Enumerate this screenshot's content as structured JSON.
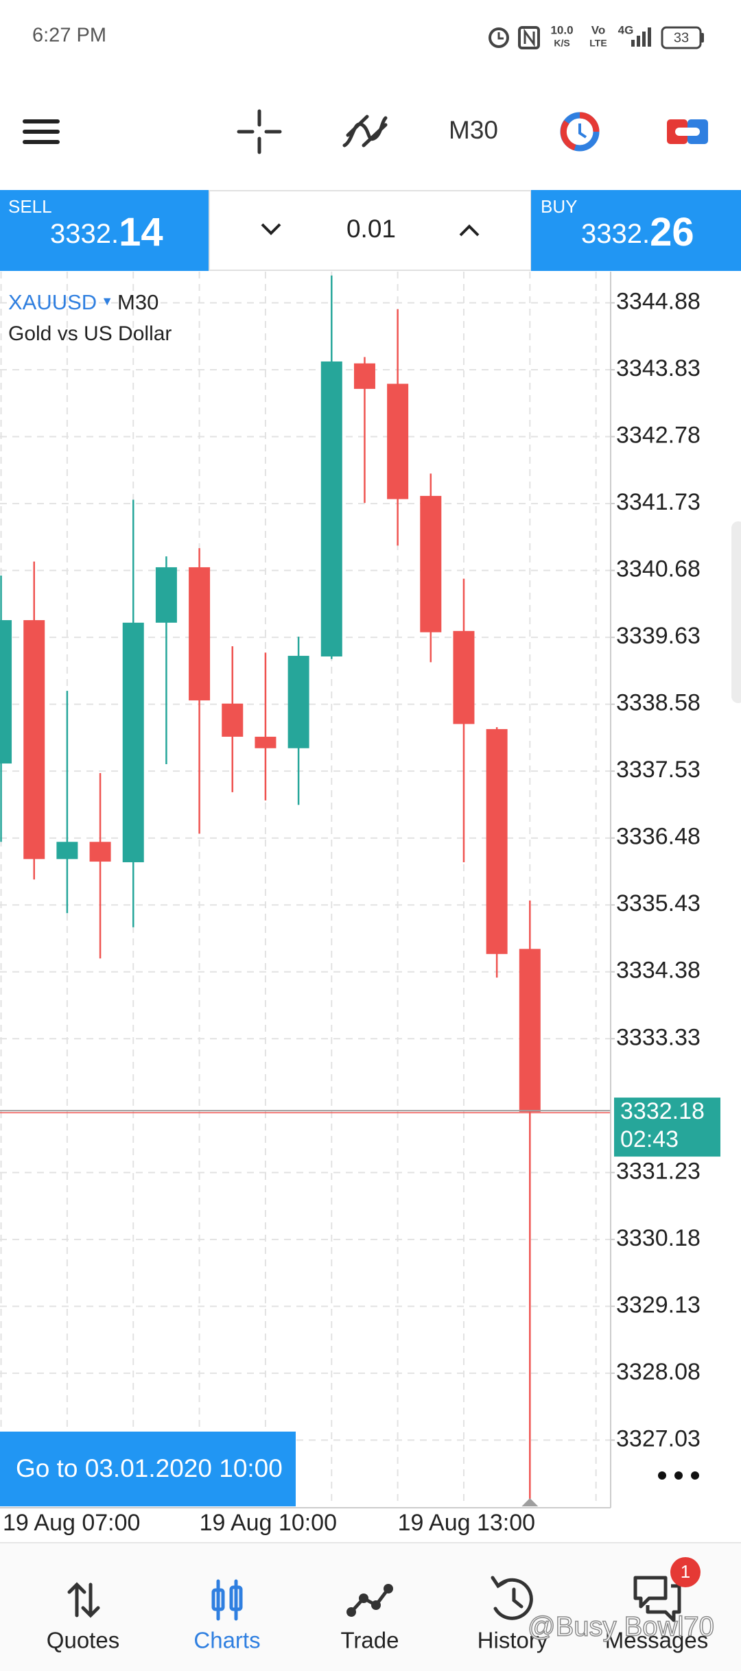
{
  "status_bar": {
    "time": "6:27 PM",
    "network_speed": "10.0",
    "speed_unit": "K/S",
    "volte_top": "Vo",
    "volte_bottom": "LTE",
    "network": "4G",
    "battery": "33"
  },
  "toolbar": {
    "timeframe": "M30"
  },
  "trade_bar": {
    "sell": {
      "label": "SELL",
      "price_main": "3332.",
      "price_big": "14"
    },
    "volume": "0.01",
    "buy": {
      "label": "BUY",
      "price_main": "3332.",
      "price_big": "26"
    }
  },
  "chart_data": {
    "type": "candlestick",
    "symbol": "XAUUSD",
    "timeframe": "M30",
    "subtitle": "Gold vs US Dollar",
    "categories": [
      "19 Aug 07:00",
      null,
      null,
      null,
      null,
      null,
      "19 Aug 10:00",
      null,
      null,
      null,
      null,
      null,
      "19 Aug 13:00",
      null,
      null,
      null,
      null
    ],
    "open": [
      3337.65,
      3339.9,
      3336.15,
      3336.42,
      3336.1,
      3339.86,
      3340.73,
      3338.59,
      3338.07,
      3337.89,
      3339.33,
      3343.93,
      3343.61,
      3341.85,
      3339.73,
      3338.19,
      3334.74
    ],
    "high": [
      3340.6,
      3340.82,
      3338.79,
      3337.5,
      3341.79,
      3340.9,
      3341.03,
      3339.49,
      3339.39,
      3339.64,
      3345.31,
      3344.03,
      3344.78,
      3342.2,
      3340.55,
      3338.22,
      3335.5
    ],
    "low": [
      3336.42,
      3335.83,
      3335.3,
      3334.59,
      3335.08,
      3337.64,
      3336.55,
      3337.2,
      3337.07,
      3337.0,
      3339.29,
      3341.74,
      3341.07,
      3339.24,
      3336.1,
      3334.29,
      3325.99
    ],
    "close": [
      3339.9,
      3336.15,
      3336.42,
      3336.11,
      3339.86,
      3340.73,
      3338.64,
      3338.07,
      3337.89,
      3339.34,
      3343.96,
      3343.53,
      3341.8,
      3339.71,
      3338.27,
      3334.66,
      3332.18
    ],
    "up_color": "#26a69a",
    "down_color": "#ef5350",
    "ylim": [
      3325.99,
      3345.37
    ],
    "yticks": [
      3344.88,
      3343.83,
      3342.78,
      3341.73,
      3340.68,
      3339.63,
      3338.58,
      3337.53,
      3336.48,
      3335.43,
      3334.38,
      3333.33,
      3331.23,
      3330.18,
      3329.13,
      3328.08,
      3327.03
    ],
    "grid": true,
    "current_price": 3332.18,
    "countdown": "02:43"
  },
  "goto_button": "Go to 03.01.2020 10:00",
  "bottom_nav": {
    "items": [
      "Quotes",
      "Charts",
      "Trade",
      "History",
      "Messages"
    ],
    "active": 1,
    "badge": "1"
  },
  "watermark": "@Busy Bowl70"
}
